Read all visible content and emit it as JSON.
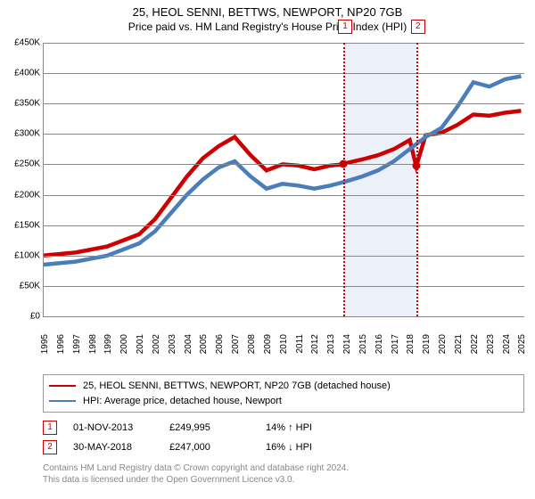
{
  "title": "25, HEOL SENNI, BETTWS, NEWPORT, NP20 7GB",
  "subtitle": "Price paid vs. HM Land Registry's House Price Index (HPI)",
  "chart": {
    "type": "line",
    "background_color": "#ffffff",
    "shaded_band": {
      "x_start": 2013.83,
      "x_end": 2018.41,
      "color": "#ecf0f8"
    },
    "xlim": [
      1995,
      2025.2
    ],
    "ylim": [
      0,
      450000
    ],
    "y_axis": {
      "ticks": [
        0,
        50000,
        100000,
        150000,
        200000,
        250000,
        300000,
        350000,
        400000,
        450000
      ],
      "labels": [
        "£0",
        "£50K",
        "£100K",
        "£150K",
        "£200K",
        "£250K",
        "£300K",
        "£350K",
        "£400K",
        "£450K"
      ],
      "fontsize": 10,
      "grid_color": "#888888"
    },
    "x_axis": {
      "ticks": [
        1995,
        1996,
        1997,
        1998,
        1999,
        2000,
        2001,
        2002,
        2003,
        2004,
        2005,
        2006,
        2007,
        2008,
        2009,
        2010,
        2011,
        2012,
        2013,
        2014,
        2015,
        2016,
        2017,
        2018,
        2019,
        2020,
        2021,
        2022,
        2023,
        2024,
        2025
      ],
      "fontsize": 10,
      "rotation": -90
    },
    "series": [
      {
        "name": "25, HEOL SENNI, BETTWS, NEWPORT, NP20 7GB (detached house)",
        "color": "#cc0000",
        "line_width": 1.5,
        "data_x": [
          1995,
          1997,
          1999,
          2000,
          2001,
          2002,
          2003,
          2004,
          2005,
          2006,
          2007,
          2008,
          2009,
          2010,
          2011,
          2012,
          2013,
          2013.83,
          2014,
          2015,
          2016,
          2017,
          2018,
          2018.41,
          2019,
          2020,
          2021,
          2022,
          2023,
          2024,
          2025
        ],
        "data_y": [
          100000,
          105000,
          115000,
          125000,
          135000,
          160000,
          195000,
          230000,
          260000,
          280000,
          295000,
          265000,
          240000,
          250000,
          248000,
          242000,
          248000,
          249995,
          252000,
          258000,
          265000,
          275000,
          290000,
          247000,
          298000,
          302000,
          315000,
          332000,
          330000,
          335000,
          338000
        ]
      },
      {
        "name": "HPI: Average price, detached house, Newport",
        "color": "#4a7ebb",
        "line_width": 1.5,
        "data_x": [
          1995,
          1997,
          1999,
          2000,
          2001,
          2002,
          2003,
          2004,
          2005,
          2006,
          2007,
          2008,
          2009,
          2010,
          2011,
          2012,
          2013,
          2014,
          2015,
          2016,
          2017,
          2018,
          2019,
          2020,
          2021,
          2022,
          2023,
          2024,
          2025
        ],
        "data_y": [
          85000,
          90000,
          100000,
          110000,
          120000,
          140000,
          170000,
          200000,
          225000,
          245000,
          255000,
          230000,
          210000,
          218000,
          215000,
          210000,
          215000,
          222000,
          230000,
          240000,
          255000,
          275000,
          295000,
          310000,
          345000,
          385000,
          378000,
          390000,
          395000
        ]
      }
    ],
    "markers": [
      {
        "index": "1",
        "x": 2013.83,
        "y": 249995,
        "dot_color": "#cc0000"
      },
      {
        "index": "2",
        "x": 2018.41,
        "y": 247000,
        "dot_color": "#cc0000"
      }
    ]
  },
  "legend": {
    "series_1": "25, HEOL SENNI, BETTWS, NEWPORT, NP20 7GB (detached house)",
    "series_2": "HPI: Average price, detached house, Newport"
  },
  "sales": [
    {
      "index": "1",
      "date": "01-NOV-2013",
      "price": "£249,995",
      "delta": "14% ↑ HPI"
    },
    {
      "index": "2",
      "date": "30-MAY-2018",
      "price": "£247,000",
      "delta": "16% ↓ HPI"
    }
  ],
  "license": {
    "line1": "Contains HM Land Registry data © Crown copyright and database right 2024.",
    "line2": "This data is licensed under the Open Government Licence v3.0."
  }
}
